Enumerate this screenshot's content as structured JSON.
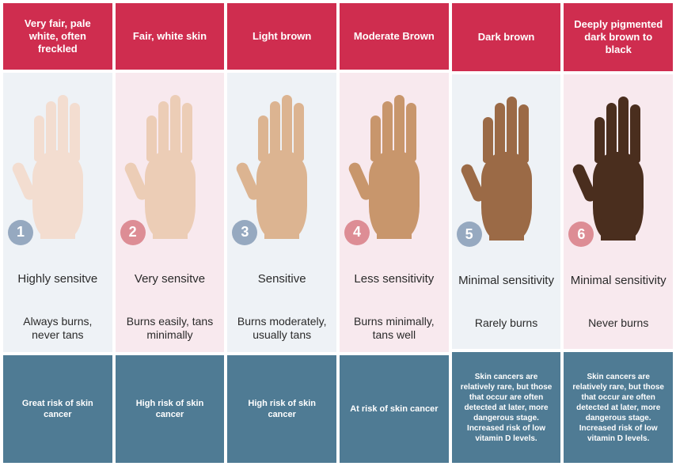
{
  "type": "infographic",
  "layout": "6-columns",
  "colors": {
    "header_bg": "#cf2d4f",
    "header_text": "#ffffff",
    "footer_bg": "#4f7b94",
    "footer_text": "#ffffff",
    "mid_bg_blue": "#eef2f6",
    "mid_bg_pink": "#f8e9ee",
    "badge_blue": "#96a9c0",
    "badge_pink": "#dd8d95",
    "body_text": "#2a2a2a"
  },
  "columns": [
    {
      "number": "1",
      "header": "Very fair, pale white, often freckled",
      "sensitivity": "Highly sensitve",
      "burns": "Always burns, never tans",
      "risk": "Great risk of skin cancer",
      "mid_bg": "#eef2f6",
      "badge_color": "#96a9c0",
      "hand_color": "#f3ddd0",
      "risk_long": false
    },
    {
      "number": "2",
      "header": "Fair, white skin",
      "sensitivity": "Very sensitve",
      "burns": "Burns easily, tans minimally",
      "risk": "High risk of skin cancer",
      "mid_bg": "#f8e9ee",
      "badge_color": "#dd8d95",
      "hand_color": "#eccdb6",
      "risk_long": false
    },
    {
      "number": "3",
      "header": "Light brown",
      "sensitivity": "Sensitive",
      "burns": "Burns moderately, usually tans",
      "risk": "High risk of skin cancer",
      "mid_bg": "#eef2f6",
      "badge_color": "#96a9c0",
      "hand_color": "#dcb491",
      "risk_long": false
    },
    {
      "number": "4",
      "header": "Moderate Brown",
      "sensitivity": "Less sensitivity",
      "burns": "Burns minimally, tans well",
      "risk": "At risk of skin cancer",
      "mid_bg": "#f8e9ee",
      "badge_color": "#dd8d95",
      "hand_color": "#c8966c",
      "risk_long": false
    },
    {
      "number": "5",
      "header": "Dark brown",
      "sensitivity": "Minimal sensitivity",
      "burns": "Rarely burns",
      "risk": "Skin cancers are relatively rare, but those that occur are often detected at later, more dangerous stage. Increased risk of low vitamin D levels.",
      "mid_bg": "#eef2f6",
      "badge_color": "#96a9c0",
      "hand_color": "#9b6a46",
      "risk_long": true
    },
    {
      "number": "6",
      "header": "Deeply pigmented dark brown to black",
      "sensitivity": "Minimal sensitivity",
      "burns": "Never burns",
      "risk": "Skin cancers are relatively rare, but those that occur are often detected at later, more dangerous stage. Increased risk of low vitamin D levels.",
      "mid_bg": "#f8e9ee",
      "badge_color": "#dd8d95",
      "hand_color": "#4a2e1e",
      "risk_long": true
    }
  ]
}
